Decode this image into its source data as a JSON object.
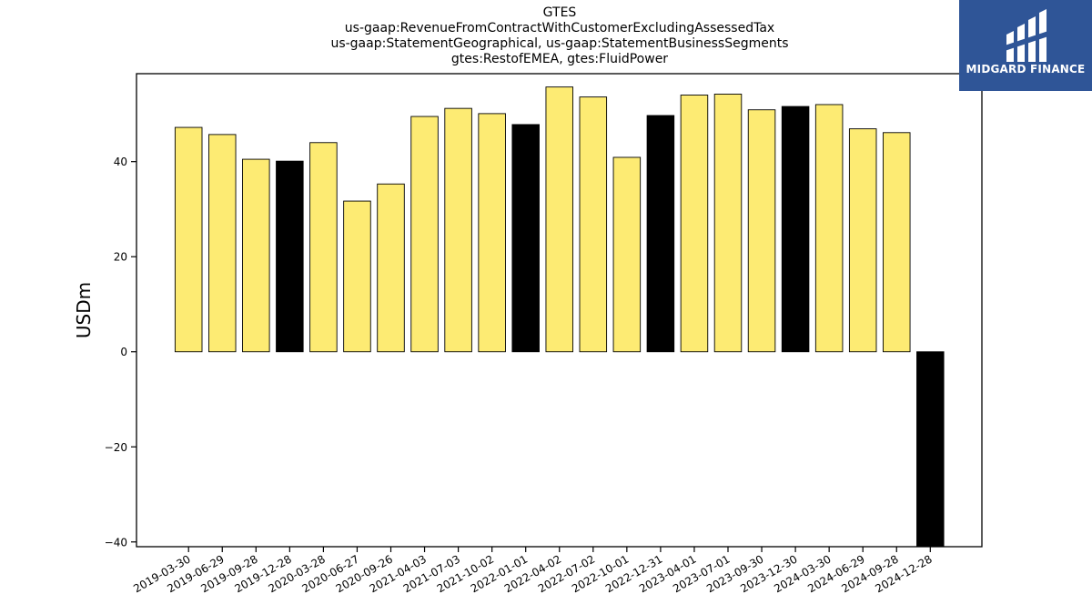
{
  "chart_data": {
    "type": "bar",
    "title_lines": [
      "GTES",
      "us-gaap:RevenueFromContractWithCustomerExcludingAssessedTax",
      "us-gaap:StatementGeographical, us-gaap:StatementBusinessSegments",
      "gtes:RestofEMEA, gtes:FluidPower"
    ],
    "ylabel": "USDm",
    "xlabel": "",
    "ylim": [
      -41,
      58.5
    ],
    "yticks": [
      -40,
      -20,
      0,
      20,
      40
    ],
    "grid": false,
    "categories": [
      "2019-03-30",
      "2019-06-29",
      "2019-09-28",
      "2019-12-28",
      "2020-03-28",
      "2020-06-27",
      "2020-09-26",
      "2021-04-03",
      "2021-07-03",
      "2021-10-02",
      "2022-01-01",
      "2022-04-02",
      "2022-07-02",
      "2022-10-01",
      "2022-12-31",
      "2023-04-01",
      "2023-07-01",
      "2023-09-30",
      "2023-12-30",
      "2024-03-30",
      "2024-06-29",
      "2024-09-28",
      "2024-12-28"
    ],
    "values": [
      47.2,
      45.7,
      40.5,
      40.1,
      44.0,
      31.7,
      35.3,
      49.5,
      51.2,
      50.1,
      47.8,
      55.7,
      53.6,
      40.9,
      49.7,
      54.0,
      54.2,
      50.9,
      51.6,
      52.0,
      46.9,
      46.1,
      -41.0
    ],
    "colors": {
      "quarter": "#fdeb73",
      "year_end": "#000000",
      "edge": "#000000"
    },
    "bar_colors": [
      "quarter",
      "quarter",
      "quarter",
      "year_end",
      "quarter",
      "quarter",
      "quarter",
      "quarter",
      "quarter",
      "quarter",
      "year_end",
      "quarter",
      "quarter",
      "quarter",
      "year_end",
      "quarter",
      "quarter",
      "quarter",
      "year_end",
      "quarter",
      "quarter",
      "quarter",
      "year_end"
    ]
  },
  "logo": {
    "text": "MIDGARD FINANCE",
    "background": "#2f5597"
  }
}
